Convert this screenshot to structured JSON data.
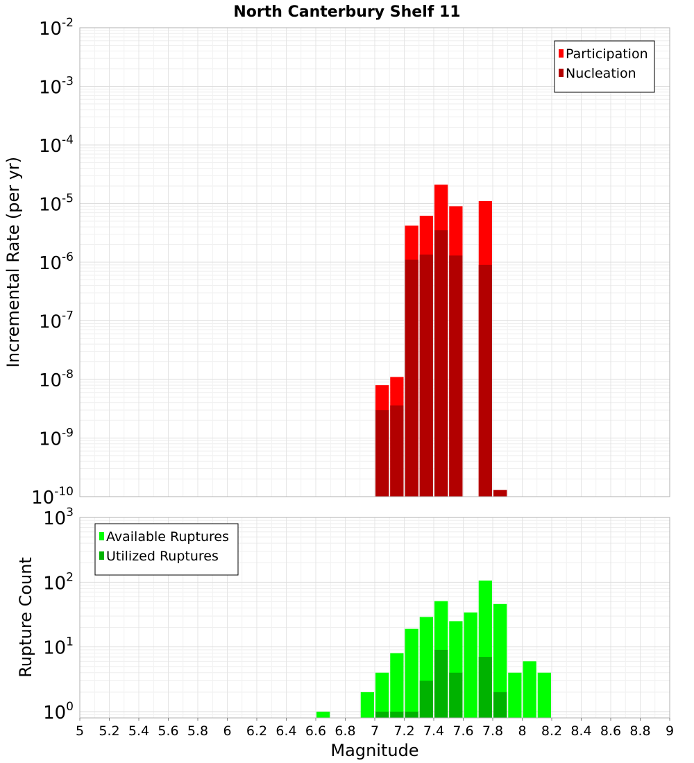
{
  "chart_data": [
    {
      "type": "bar",
      "title": "North Canterbury Shelf 11",
      "ylabel": "Incremental Rate (per yr)",
      "xlabel": "",
      "xlim": [
        5,
        9
      ],
      "ylim": [
        1e-10,
        0.01
      ],
      "yscale": "log",
      "bin_width": 0.1,
      "grid": true,
      "legend_position": "top-right",
      "yticks": [
        {
          "base": "10",
          "exp": "-10",
          "value": 1e-10
        },
        {
          "base": "10",
          "exp": "-9",
          "value": 1e-09
        },
        {
          "base": "10",
          "exp": "-8",
          "value": 1e-08
        },
        {
          "base": "10",
          "exp": "-7",
          "value": 1e-07
        },
        {
          "base": "10",
          "exp": "-6",
          "value": 1e-06
        },
        {
          "base": "10",
          "exp": "-5",
          "value": 1e-05
        },
        {
          "base": "10",
          "exp": "-4",
          "value": 0.0001
        },
        {
          "base": "10",
          "exp": "-3",
          "value": 0.001
        },
        {
          "base": "10",
          "exp": "-2",
          "value": 0.01
        }
      ],
      "x": [
        7.05,
        7.15,
        7.25,
        7.35,
        7.45,
        7.55,
        7.75,
        7.85
      ],
      "series": [
        {
          "name": "Participation",
          "color": "#ff0000",
          "values": [
            8e-09,
            1.1e-08,
            4.2e-06,
            6.2e-06,
            2.1e-05,
            9e-06,
            1.1e-05,
            1.3e-10
          ]
        },
        {
          "name": "Nucleation",
          "color": "#b20000",
          "values": [
            3e-09,
            3.6e-09,
            1.1e-06,
            1.35e-06,
            3.5e-06,
            1.3e-06,
            9e-07,
            1.3e-10
          ]
        }
      ]
    },
    {
      "type": "bar",
      "title": "",
      "ylabel": "Rupture Count",
      "xlabel": "Magnitude",
      "xlim": [
        5,
        9
      ],
      "ylim": [
        0.8,
        1000
      ],
      "yscale": "log",
      "bin_width": 0.1,
      "grid": true,
      "legend_position": "top-left",
      "yticks": [
        {
          "base": "10",
          "exp": "0",
          "value": 1
        },
        {
          "base": "10",
          "exp": "1",
          "value": 10
        },
        {
          "base": "10",
          "exp": "2",
          "value": 100
        },
        {
          "base": "10",
          "exp": "3",
          "value": 1000
        }
      ],
      "xticks": [
        "5",
        "5.2",
        "5.4",
        "5.6",
        "5.8",
        "6",
        "6.2",
        "6.4",
        "6.6",
        "6.8",
        "7",
        "7.2",
        "7.4",
        "7.6",
        "7.8",
        "8",
        "8.2",
        "8.4",
        "8.6",
        "8.8",
        "9"
      ],
      "x": [
        6.65,
        6.95,
        7.05,
        7.15,
        7.25,
        7.35,
        7.45,
        7.55,
        7.65,
        7.75,
        7.85,
        7.95,
        8.05,
        8.15
      ],
      "series": [
        {
          "name": "Available Ruptures",
          "color": "#00ff00",
          "values": [
            1,
            2,
            4,
            8,
            19,
            29,
            51,
            25,
            34,
            106,
            46,
            4,
            6,
            4
          ]
        },
        {
          "name": "Utilized Ruptures",
          "color": "#00b200",
          "values": [
            0,
            0,
            1,
            1,
            1,
            3,
            9,
            4,
            0,
            7,
            2,
            0,
            0,
            0
          ]
        }
      ]
    }
  ]
}
